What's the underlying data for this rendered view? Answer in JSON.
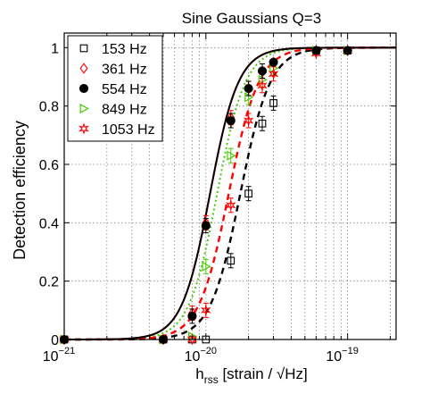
{
  "chart_data": {
    "type": "line",
    "title": "Sine Gaussians Q=3",
    "xlabel": {
      "h": "h",
      "sub": "rss",
      "rest": " [strain / √Hz]"
    },
    "ylabel": "Detection efficiency",
    "x_scale": "log",
    "xlim": [
      1e-21,
      2.2e-19
    ],
    "ylim": [
      0,
      1.05
    ],
    "x_ticks": [
      {
        "value": 1e-21,
        "label_base": "10",
        "label_exp": "−21"
      },
      {
        "value": 1e-20,
        "label_base": "10",
        "label_exp": "−20"
      },
      {
        "value": 1e-19,
        "label_base": "10",
        "label_exp": "−19"
      }
    ],
    "y_ticks": [
      {
        "value": 0,
        "label": "0"
      },
      {
        "value": 0.2,
        "label": "0.2"
      },
      {
        "value": 0.4,
        "label": "0.4"
      },
      {
        "value": 0.6,
        "label": "0.6"
      },
      {
        "value": 0.8,
        "label": "0.8"
      },
      {
        "value": 1,
        "label": "1"
      }
    ],
    "grid": true,
    "legend_position": "top-left",
    "series": [
      {
        "name": "153 Hz",
        "color": "#000000",
        "marker": "square-open",
        "line_style": "dashed",
        "fit": {
          "x50": 1.75e-20,
          "width_dex": 0.18
        },
        "points": [
          {
            "x": 1e-21,
            "y": 0.0
          },
          {
            "x": 5e-21,
            "y": 0.0
          },
          {
            "x": 8e-21,
            "y": 0.0
          },
          {
            "x": 1e-20,
            "y": 0.0
          },
          {
            "x": 1.5e-20,
            "y": 0.27
          },
          {
            "x": 2e-20,
            "y": 0.5
          },
          {
            "x": 2.5e-20,
            "y": 0.74
          },
          {
            "x": 3e-20,
            "y": 0.81
          },
          {
            "x": 6e-20,
            "y": 0.99
          },
          {
            "x": 1e-19,
            "y": 0.99
          }
        ]
      },
      {
        "name": "361 Hz",
        "color": "#ff0000",
        "marker": "diamond-open",
        "line_style": "solid",
        "fit": {
          "x50": 1.07e-20,
          "width_dex": 0.17
        },
        "points": [
          {
            "x": 1e-21,
            "y": 0.0
          },
          {
            "x": 5e-21,
            "y": 0.0
          },
          {
            "x": 8e-21,
            "y": 0.09
          },
          {
            "x": 1e-20,
            "y": 0.4
          },
          {
            "x": 1.5e-20,
            "y": 0.76
          },
          {
            "x": 2e-20,
            "y": 0.86
          },
          {
            "x": 2.5e-20,
            "y": 0.92
          },
          {
            "x": 3e-20,
            "y": 0.95
          },
          {
            "x": 6e-20,
            "y": 0.99
          },
          {
            "x": 1e-19,
            "y": 0.99
          }
        ]
      },
      {
        "name": "554 Hz",
        "color": "#000000",
        "marker": "circle-filled",
        "line_style": "solid",
        "fit": {
          "x50": 1.07e-20,
          "width_dex": 0.17
        },
        "points": [
          {
            "x": 1e-21,
            "y": 0.0
          },
          {
            "x": 5e-21,
            "y": 0.0
          },
          {
            "x": 8e-21,
            "y": 0.08
          },
          {
            "x": 1e-20,
            "y": 0.39
          },
          {
            "x": 1.5e-20,
            "y": 0.75
          },
          {
            "x": 2e-20,
            "y": 0.86
          },
          {
            "x": 2.5e-20,
            "y": 0.92
          },
          {
            "x": 3e-20,
            "y": 0.95
          },
          {
            "x": 6e-20,
            "y": 0.99
          },
          {
            "x": 1e-19,
            "y": 0.99
          }
        ]
      },
      {
        "name": "849 Hz",
        "color": "#44cc00",
        "marker": "triangle-right-open",
        "line_style": "dotted",
        "fit": {
          "x50": 1.2e-20,
          "width_dex": 0.17
        },
        "points": [
          {
            "x": 1e-21,
            "y": 0.0
          },
          {
            "x": 5e-21,
            "y": 0.0
          },
          {
            "x": 8e-21,
            "y": 0.01
          },
          {
            "x": 1e-20,
            "y": 0.25
          },
          {
            "x": 1.5e-20,
            "y": 0.63
          },
          {
            "x": 2e-20,
            "y": 0.83
          },
          {
            "x": 2.5e-20,
            "y": 0.89
          },
          {
            "x": 3e-20,
            "y": 0.93
          },
          {
            "x": 6e-20,
            "y": 0.99
          },
          {
            "x": 1e-19,
            "y": 0.99
          }
        ]
      },
      {
        "name": "1053 Hz",
        "color": "#ff0000",
        "marker": "star",
        "line_style": "dashed",
        "fit": {
          "x50": 1.45e-20,
          "width_dex": 0.18
        },
        "points": [
          {
            "x": 1e-21,
            "y": 0.0
          },
          {
            "x": 5e-21,
            "y": 0.0
          },
          {
            "x": 8e-21,
            "y": 0.0
          },
          {
            "x": 1e-20,
            "y": 0.1
          },
          {
            "x": 1.5e-20,
            "y": 0.46
          },
          {
            "x": 2e-20,
            "y": 0.75
          },
          {
            "x": 2.5e-20,
            "y": 0.87
          },
          {
            "x": 3e-20,
            "y": 0.91
          },
          {
            "x": 6e-20,
            "y": 0.98
          },
          {
            "x": 1e-19,
            "y": 0.99
          }
        ]
      }
    ]
  }
}
